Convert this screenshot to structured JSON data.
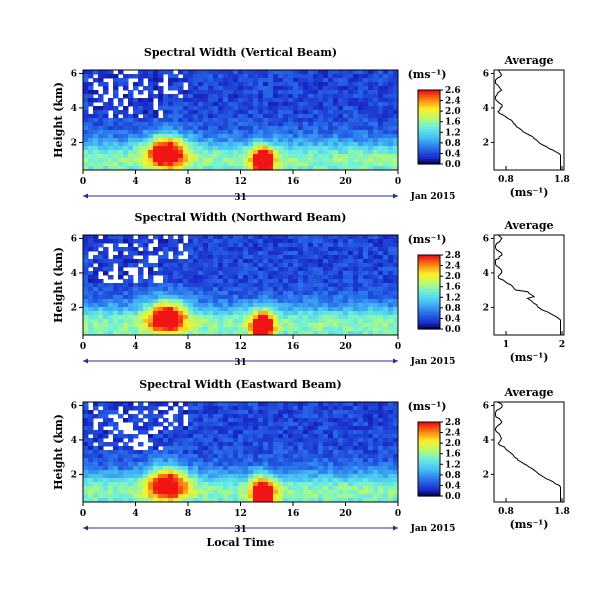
{
  "chart_data": [
    {
      "type": "heatmap",
      "title": "Spectral Width (Vertical Beam)",
      "ylabel": "Height (km)",
      "x_ticks": [
        "0",
        "4",
        "8",
        "12",
        "16",
        "20",
        "0"
      ],
      "y_ticks": [
        "6",
        "4",
        "2"
      ],
      "date_tick": "31",
      "date_label": "Jan 2015",
      "colorbar_unit": "(ms⁻¹)",
      "colorbar_ticks": [
        "2.6",
        "2.4",
        "2.0",
        "1.6",
        "1.2",
        "0.8",
        "0.4",
        "0.0"
      ],
      "profile": {
        "title": "Average",
        "xlabel": "(ms⁻¹)",
        "x_ticks": [
          "0.8",
          "1.8"
        ],
        "y_ticks": [
          "6",
          "4",
          "2"
        ]
      }
    },
    {
      "type": "heatmap",
      "title": "Spectral Width (Northward Beam)",
      "ylabel": "Height (km)",
      "x_ticks": [
        "0",
        "4",
        "8",
        "12",
        "16",
        "20",
        "0"
      ],
      "y_ticks": [
        "6",
        "4",
        "2"
      ],
      "date_tick": "31",
      "date_label": "Jan 2015",
      "colorbar_unit": "(ms⁻¹)",
      "colorbar_ticks": [
        "2.8",
        "2.4",
        "2.0",
        "1.6",
        "1.2",
        "0.8",
        "0.4",
        "0.0"
      ],
      "profile": {
        "title": "Average",
        "xlabel": "(ms⁻¹)",
        "x_ticks": [
          "1",
          "2"
        ],
        "y_ticks": [
          "6",
          "4",
          "2"
        ]
      }
    },
    {
      "type": "heatmap",
      "title": "Spectral Width (Eastward Beam)",
      "ylabel": "Height (km)",
      "x_ticks": [
        "0",
        "4",
        "8",
        "12",
        "16",
        "20",
        "0"
      ],
      "y_ticks": [
        "6",
        "4",
        "2"
      ],
      "date_tick": "31",
      "date_label": "Jan 2015",
      "xlabel": "Local Time",
      "colorbar_unit": "(ms⁻¹)",
      "colorbar_ticks": [
        "2.8",
        "2.4",
        "2.0",
        "1.6",
        "1.2",
        "0.8",
        "0.4",
        "0.0"
      ],
      "profile": {
        "title": "Average",
        "xlabel": "(ms⁻¹)",
        "x_ticks": [
          "0.8",
          "1.8"
        ],
        "y_ticks": [
          "6",
          "4",
          "2"
        ]
      }
    }
  ]
}
